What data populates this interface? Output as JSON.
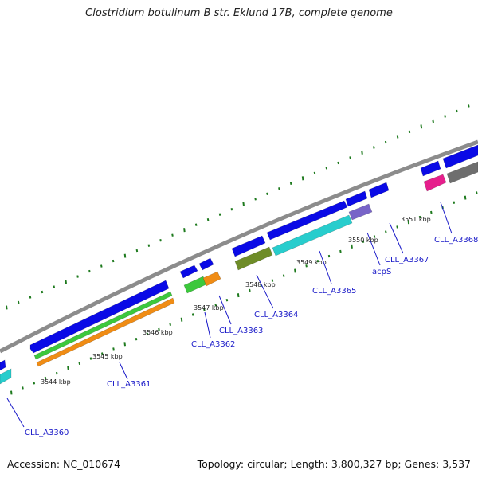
{
  "title": "Clostridium botulinum B str. Eklund 17B, complete genome",
  "footer": {
    "accession": "Accession: NC_010674",
    "summary": "Topology: circular; Length: 3,800,327 bp; Genes: 3,537"
  },
  "scale_labels": [
    "3544 kbp",
    "3545 kbp",
    "3546 kbp",
    "3547 kbp",
    "3548 kbp",
    "3549 kbp",
    "3550 kbp",
    "3551 kbp"
  ],
  "gene_labels": [
    "CLL_A3360",
    "CLL_A3361",
    "CLL_A3362",
    "CLL_A3363",
    "CLL_A3364",
    "CLL_A3365",
    "acpS",
    "CLL_A3367",
    "CLL_A3368"
  ],
  "colors": {
    "backbone": "#8c8c8c",
    "gene": "#0a0ae6",
    "cds_green": "#3cc83c",
    "cds_orange": "#f08c14",
    "cds_cyan": "#28cdcd",
    "cds_olive": "#6e8c28",
    "cds_purple": "#7864c8",
    "cds_pink": "#e61e8c",
    "cds_gray": "#6e6e6e",
    "ticks": "#1e7a1e",
    "label": "#1a1ac8"
  }
}
